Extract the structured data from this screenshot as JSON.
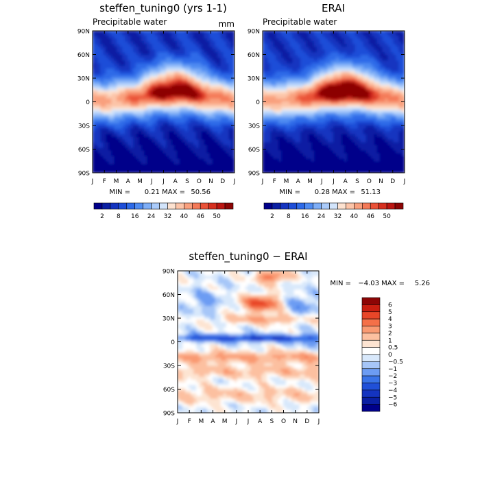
{
  "chart_data": [
    {
      "type": "heatmap",
      "title": "steffen_tuning0 (yrs 1-1)",
      "subtitle": "Precipitable water",
      "units": "mm",
      "x": [
        "J",
        "F",
        "M",
        "A",
        "M",
        "J",
        "J",
        "A",
        "S",
        "O",
        "N",
        "D",
        "J"
      ],
      "y": [
        "90N",
        "60N",
        "30N",
        "0",
        "30S",
        "60S",
        "90S"
      ],
      "min_label": "MIN =",
      "min": "0.21",
      "max_label": "MAX =",
      "max": "50.56",
      "min_value": 0.21,
      "max_value": 50.56,
      "colorbar_ticks": [
        "2",
        "8",
        "16",
        "24",
        "32",
        "40",
        "46",
        "50"
      ]
    },
    {
      "type": "heatmap",
      "title": "ERAI",
      "subtitle": "Precipitable water",
      "x": [
        "J",
        "F",
        "M",
        "A",
        "M",
        "J",
        "J",
        "A",
        "S",
        "O",
        "N",
        "D",
        "J"
      ],
      "y": [
        "90N",
        "60N",
        "30N",
        "0",
        "30S",
        "60S",
        "90S"
      ],
      "min_label": "MIN =",
      "min": "0.28",
      "max_label": "MAX =",
      "max": "51.13",
      "min_value": 0.28,
      "max_value": 51.13,
      "colorbar_ticks": [
        "2",
        "8",
        "16",
        "24",
        "32",
        "40",
        "46",
        "50"
      ]
    },
    {
      "type": "heatmap",
      "title": "steffen_tuning0 − ERAI",
      "x": [
        "J",
        "F",
        "M",
        "A",
        "M",
        "J",
        "J",
        "A",
        "S",
        "O",
        "N",
        "D",
        "J"
      ],
      "y": [
        "90N",
        "60N",
        "30N",
        "0",
        "30S",
        "60S",
        "90S"
      ],
      "min_label": "MIN =",
      "min": "−4.03",
      "max_label": "MAX =",
      "max": "5.26",
      "min_value": -4.03,
      "max_value": 5.26,
      "colorbar_ticks": [
        "6",
        "5",
        "4",
        "3",
        "2",
        "1",
        "0.5",
        "0",
        "−0.5",
        "−1",
        "−2",
        "−3",
        "−4",
        "−5",
        "−6"
      ]
    }
  ],
  "colors": {
    "abs_scale": [
      "#00008a",
      "#0a1fa3",
      "#1434c0",
      "#1e4ed8",
      "#2d6ae8",
      "#4f8cf2",
      "#7eaef7",
      "#aacbfa",
      "#d2e4fb",
      "#fde2d0",
      "#fcc4a8",
      "#f9a07e",
      "#f47a58",
      "#ea5238",
      "#d63020",
      "#bb1612",
      "#8c0505"
    ],
    "diff_scale": [
      "#00008a",
      "#0a1fa3",
      "#1434c0",
      "#2050d8",
      "#3a74e8",
      "#6c9cf3",
      "#a6c6f8",
      "#d8e8fb",
      "#ffffff",
      "#fde4d2",
      "#fcc0a0",
      "#f99a72",
      "#f47048",
      "#e84628",
      "#c81e10",
      "#8c0505"
    ]
  }
}
